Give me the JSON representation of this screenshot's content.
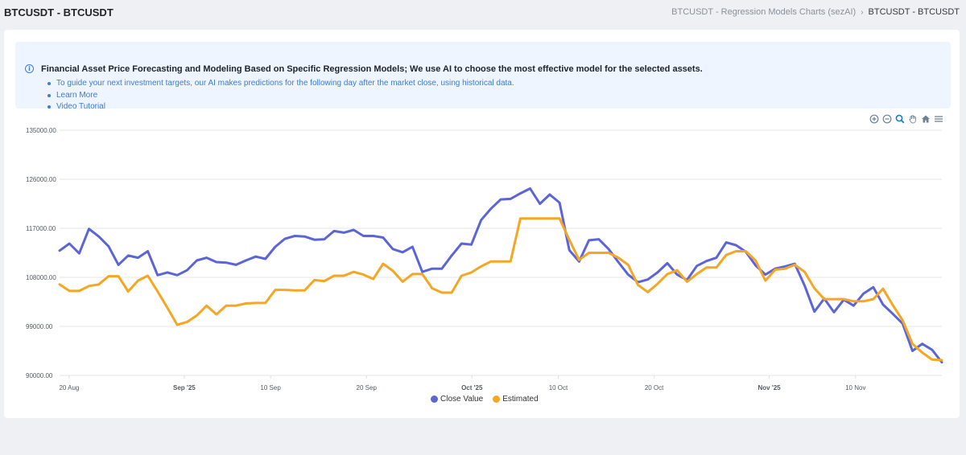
{
  "header": {
    "title": "BTCUSDT - BTCUSDT",
    "breadcrumb": {
      "parent": "BTCUSDT - Regression Models Charts (sezAI)",
      "separator": "›",
      "current": "BTCUSDT - BTCUSDT"
    }
  },
  "info": {
    "icon": "info-icon",
    "heading": "Financial Asset Price Forecasting and Modeling Based on Specific Regression Models; We use AI to choose the most effective model for the selected assets.",
    "items": [
      "To guide your next investment targets, our AI makes predictions for the following day after the market close, using historical data.",
      "Learn More",
      "Video Tutorial"
    ]
  },
  "toolbar": {
    "icons": [
      "zoom-in-icon",
      "zoom-out-icon",
      "selection-zoom-icon",
      "pan-hand-icon",
      "reset-home-icon",
      "menu-icon"
    ]
  },
  "chart_data": {
    "type": "line",
    "x_start": "2025-08-19",
    "x_end": "2025-11-19",
    "y_axis": {
      "ticks": [
        "135000.00",
        "126000.00",
        "117000.00",
        "108000.00",
        "99000.00",
        "90000.00"
      ],
      "min": 90000,
      "max": 135000
    },
    "x_ticks": [
      {
        "label": "20 Aug",
        "date": "2025-08-20",
        "bold": false
      },
      {
        "label": "Sep '25",
        "date": "2025-09-01",
        "bold": true
      },
      {
        "label": "10 Sep",
        "date": "2025-09-10",
        "bold": false
      },
      {
        "label": "20 Sep",
        "date": "2025-09-20",
        "bold": false
      },
      {
        "label": "Oct '25",
        "date": "2025-10-01",
        "bold": true
      },
      {
        "label": "10 Oct",
        "date": "2025-10-10",
        "bold": false
      },
      {
        "label": "20 Oct",
        "date": "2025-10-20",
        "bold": false
      },
      {
        "label": "Nov '25",
        "date": "2025-11-01",
        "bold": true
      },
      {
        "label": "10 Nov",
        "date": "2025-11-10",
        "bold": false
      }
    ],
    "grid": true,
    "legend_position": "bottom-center",
    "series": [
      {
        "name": "Close Value",
        "color": "#5b65d8",
        "values": [
          112900,
          114200,
          112400,
          116900,
          115500,
          113700,
          110300,
          112000,
          111600,
          112800,
          108400,
          108900,
          108400,
          109300,
          111100,
          111600,
          110800,
          110700,
          110300,
          111100,
          111800,
          111400,
          113600,
          115100,
          115600,
          115500,
          114900,
          115000,
          116500,
          116200,
          116700,
          115600,
          115600,
          115300,
          113200,
          112600,
          113600,
          109000,
          109600,
          109600,
          112000,
          114200,
          114000,
          118500,
          120600,
          122300,
          122400,
          123400,
          124300,
          121500,
          123200,
          121700,
          113000,
          110900,
          114800,
          115000,
          113200,
          110800,
          108500,
          107100,
          107600,
          108900,
          110600,
          108500,
          107500,
          110100,
          111000,
          111600,
          114400,
          113900,
          112700,
          110200,
          108500,
          109600,
          110000,
          110500,
          106500,
          101700,
          104100,
          101600,
          103900,
          102800,
          105000,
          106200,
          103000,
          101300,
          99500,
          94500,
          95800,
          94700,
          92400
        ],
        "x_end": "2025-11-19"
      },
      {
        "name": "Estimated",
        "color": "#f5a623",
        "values": [
          106700,
          105500,
          105500,
          106400,
          106700,
          108200,
          108200,
          105400,
          107400,
          108300,
          105400,
          102400,
          99300,
          99800,
          101000,
          102800,
          101200,
          102800,
          102800,
          103200,
          103300,
          103300,
          105700,
          105700,
          105600,
          105600,
          107500,
          107300,
          108300,
          108300,
          109000,
          108500,
          107700,
          110500,
          109200,
          107200,
          108600,
          108600,
          106000,
          105200,
          105200,
          108300,
          108900,
          110000,
          110900,
          110900,
          110900,
          118800,
          118800,
          118800,
          118800,
          118800,
          114900,
          111200,
          112500,
          112500,
          112500,
          111600,
          110300,
          106600,
          105300,
          106800,
          108600,
          109300,
          107200,
          108600,
          109800,
          109800,
          112100,
          112800,
          112800,
          111100,
          107400,
          109400,
          109600,
          110300,
          109000,
          106000,
          104000,
          104000,
          104000,
          103600,
          103600,
          104000,
          105900,
          102900,
          100100,
          95800,
          94200,
          92900,
          92800
        ],
        "x_end": "2025-11-19"
      }
    ]
  }
}
